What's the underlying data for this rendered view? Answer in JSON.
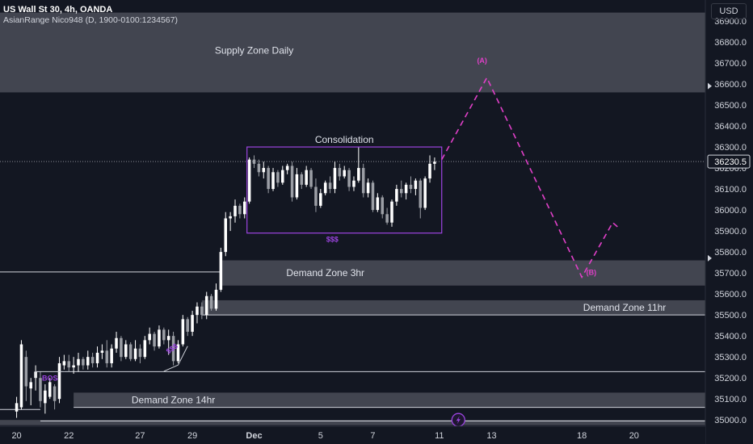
{
  "header": {
    "symbol_line": "US Wall St 30, 4h, OANDA",
    "indicator_line": "AsianRange Nico948 (D, 1900-0100:1234567)",
    "currency_button": "USD"
  },
  "colors": {
    "background": "#131722",
    "up_candle": "#ffffff",
    "down_candle": "#9b9ea5",
    "zone_fill": "#4b4e58",
    "projection": "#e040c8",
    "purple": "#9c44e0",
    "axis_text": "#d1d4dc"
  },
  "chart_data": {
    "type": "candlestick",
    "y_axis": {
      "ylim": [
        34970,
        37000
      ],
      "ticks": [
        "36900.0",
        "36800.0",
        "36700.0",
        "36600.0",
        "36500.0",
        "36400.0",
        "36300.0",
        "36200.0",
        "36100.0",
        "36000.0",
        "35900.0",
        "35800.0",
        "35700.0",
        "35600.0",
        "35500.0",
        "35400.0",
        "35300.0",
        "35200.0",
        "35100.0",
        "35000.0"
      ],
      "current_price_label": "36230.5",
      "current_price": 36230.5
    },
    "x_axis": {
      "ticks": [
        {
          "label": "20",
          "bar": 0
        },
        {
          "label": "22",
          "bar": 11
        },
        {
          "label": "27",
          "bar": 26
        },
        {
          "label": "29",
          "bar": 37
        },
        {
          "label": "Dec",
          "bar": 50
        },
        {
          "label": "5",
          "bar": 64
        },
        {
          "label": "7",
          "bar": 75
        },
        {
          "label": "11",
          "bar": 89
        },
        {
          "label": "13",
          "bar": 100
        },
        {
          "label": "18",
          "bar": 119
        },
        {
          "label": "20",
          "bar": 130
        }
      ],
      "bar_range": [
        -3.5,
        145
      ]
    },
    "candles": [
      [
        35040,
        35110,
        35010,
        35080
      ],
      [
        35060,
        35380,
        35050,
        35360
      ],
      [
        35300,
        35330,
        35090,
        35160
      ],
      [
        35150,
        35200,
        35070,
        35180
      ],
      [
        35200,
        35260,
        35140,
        35230
      ],
      [
        35200,
        35230,
        35060,
        35090
      ],
      [
        35080,
        35170,
        35030,
        35140
      ],
      [
        35110,
        35200,
        35100,
        35180
      ],
      [
        35160,
        35170,
        35050,
        35090
      ],
      [
        35100,
        35300,
        35080,
        35270
      ],
      [
        35260,
        35310,
        35240,
        35280
      ],
      [
        35280,
        35310,
        35230,
        35250
      ],
      [
        35250,
        35300,
        35220,
        35260
      ],
      [
        35260,
        35320,
        35230,
        35290
      ],
      [
        35290,
        35300,
        35240,
        35260
      ],
      [
        35260,
        35330,
        35240,
        35300
      ],
      [
        35300,
        35320,
        35250,
        35270
      ],
      [
        35270,
        35350,
        35250,
        35320
      ],
      [
        35320,
        35360,
        35290,
        35330
      ],
      [
        35330,
        35380,
        35250,
        35270
      ],
      [
        35270,
        35360,
        35250,
        35340
      ],
      [
        35340,
        35420,
        35320,
        35390
      ],
      [
        35390,
        35400,
        35280,
        35300
      ],
      [
        35300,
        35380,
        35290,
        35360
      ],
      [
        35360,
        35370,
        35280,
        35290
      ],
      [
        35290,
        35380,
        35280,
        35340
      ],
      [
        35340,
        35360,
        35270,
        35300
      ],
      [
        35300,
        35400,
        35290,
        35380
      ],
      [
        35380,
        35440,
        35360,
        35410
      ],
      [
        35410,
        35420,
        35330,
        35350
      ],
      [
        35350,
        35450,
        35340,
        35430
      ],
      [
        35430,
        35440,
        35360,
        35380
      ],
      [
        35380,
        35430,
        35310,
        35400
      ],
      [
        35400,
        35420,
        35260,
        35280
      ],
      [
        35280,
        35380,
        35270,
        35360
      ],
      [
        35360,
        35500,
        35350,
        35480
      ],
      [
        35480,
        35490,
        35400,
        35420
      ],
      [
        35420,
        35520,
        35400,
        35500
      ],
      [
        35500,
        35560,
        35460,
        35540
      ],
      [
        35540,
        35560,
        35480,
        35500
      ],
      [
        35500,
        35610,
        35480,
        35590
      ],
      [
        35590,
        35600,
        35520,
        35530
      ],
      [
        35530,
        35650,
        35520,
        35620
      ],
      [
        35620,
        35820,
        35610,
        35800
      ],
      [
        35800,
        35990,
        35780,
        35960
      ],
      [
        35960,
        35990,
        35900,
        35970
      ],
      [
        35970,
        36050,
        35940,
        36020
      ],
      [
        36020,
        36030,
        35960,
        35980
      ],
      [
        35980,
        36060,
        35960,
        36040
      ],
      [
        36040,
        36250,
        36030,
        36240
      ],
      [
        36240,
        36260,
        36200,
        36220
      ],
      [
        36220,
        36240,
        36160,
        36180
      ],
      [
        36180,
        36230,
        36150,
        36200
      ],
      [
        36200,
        36210,
        36080,
        36100
      ],
      [
        36100,
        36200,
        36090,
        36180
      ],
      [
        36180,
        36190,
        36110,
        36130
      ],
      [
        36130,
        36210,
        36120,
        36190
      ],
      [
        36190,
        36220,
        36170,
        36210
      ],
      [
        36210,
        36230,
        36040,
        36060
      ],
      [
        36060,
        36200,
        36050,
        36170
      ],
      [
        36170,
        36180,
        36100,
        36120
      ],
      [
        36120,
        36210,
        36110,
        36190
      ],
      [
        36190,
        36200,
        36100,
        36110
      ],
      [
        36110,
        36150,
        35990,
        36020
      ],
      [
        36020,
        36100,
        36010,
        36080
      ],
      [
        36080,
        36140,
        36070,
        36130
      ],
      [
        36130,
        36160,
        36080,
        36100
      ],
      [
        36100,
        36230,
        36080,
        36200
      ],
      [
        36200,
        36220,
        36140,
        36160
      ],
      [
        36160,
        36210,
        36150,
        36190
      ],
      [
        36190,
        36200,
        36090,
        36110
      ],
      [
        36110,
        36160,
        36090,
        36140
      ],
      [
        36140,
        36300,
        36130,
        36200
      ],
      [
        36200,
        36220,
        36060,
        36080
      ],
      [
        36080,
        36150,
        36060,
        36130
      ],
      [
        36130,
        36140,
        35990,
        36000
      ],
      [
        36000,
        36080,
        35990,
        36060
      ],
      [
        36060,
        36070,
        35960,
        35980
      ],
      [
        35980,
        36010,
        35930,
        35940
      ],
      [
        35940,
        36050,
        35920,
        36040
      ],
      [
        36040,
        36120,
        36020,
        36100
      ],
      [
        36100,
        36140,
        36060,
        36080
      ],
      [
        36080,
        36130,
        36050,
        36120
      ],
      [
        36120,
        36160,
        36080,
        36100
      ],
      [
        36100,
        36150,
        36070,
        36140
      ],
      [
        36140,
        36150,
        35960,
        36010
      ],
      [
        36010,
        36160,
        36000,
        36150
      ],
      [
        36150,
        36260,
        36130,
        36220
      ],
      [
        36220,
        36250,
        36190,
        36230
      ]
    ],
    "zones": [
      {
        "label": "Supply Zone Daily",
        "top": 36940,
        "bottom": 36560,
        "x_start": -4,
        "x_end": null
      },
      {
        "label": "Demand Zone 3hr",
        "top": 35760,
        "bottom": 35640,
        "x_start": 43,
        "x_end": null
      },
      {
        "label": "Demand Zone 11hr",
        "top": 35570,
        "bottom": 35500,
        "x_start": 39,
        "x_end": null
      },
      {
        "label": "Demand Zone 14hr",
        "top": 35130,
        "bottom": 35060,
        "x_start": 12,
        "x_end": null
      },
      {
        "label": "",
        "top": 35000,
        "bottom": 34975,
        "x_start": -4,
        "x_end": null
      }
    ],
    "lines": [
      {
        "name": "demand-3hr-origin-line",
        "price": 35705,
        "x_start": -4,
        "x_end": 43
      },
      {
        "name": "bos-level-line",
        "price": 35230,
        "x_start": 10,
        "x_end": null
      },
      {
        "name": "demand-11hr-base-line",
        "price": 35500,
        "x_start": 39,
        "x_end": null
      },
      {
        "name": "demand-14hr-base-line",
        "price": 35060,
        "x_start": 12,
        "x_end": null
      },
      {
        "name": "lower-edge-line",
        "price": 35050,
        "x_start": -4,
        "x_end": 5
      },
      {
        "name": "bottom-zone-line",
        "price": 34995,
        "x_start": 5,
        "x_end": null
      }
    ],
    "consolidation_box": {
      "label": "Consolidation",
      "liquidity_label": "$$$",
      "top": 36300,
      "bottom": 35890,
      "x_start": 48.5,
      "x_end": 89.5
    },
    "bos": {
      "label": "BOS",
      "price": 35230,
      "x_start": 4,
      "x_end": 10
    },
    "liquidity_sweep": {
      "label": "$$$",
      "points": [
        [
          31,
          35270
        ],
        [
          34,
          35300
        ],
        [
          36,
          35390
        ]
      ]
    },
    "projection": {
      "labels": [
        {
          "text": "(A)",
          "bar": 98,
          "price": 36700
        },
        {
          "text": "(B)",
          "bar": 121,
          "price": 35690
        }
      ],
      "points": [
        [
          89.5,
          36240
        ],
        [
          99,
          36630
        ],
        [
          119,
          35680
        ],
        [
          125.5,
          35940
        ],
        [
          127,
          35910
        ]
      ]
    },
    "event_icon_bar": 93
  }
}
